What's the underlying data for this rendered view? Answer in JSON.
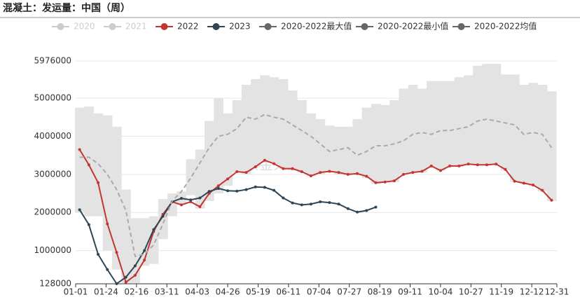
{
  "chart_data": {
    "type": "line",
    "title": "混凝土：发运量：中国（周）",
    "watermark": "紫金天风期货",
    "x": [
      3,
      10,
      17,
      24,
      31,
      38,
      45,
      52,
      59,
      66,
      73,
      80,
      87,
      94,
      101,
      108,
      115,
      122,
      129,
      136,
      143,
      150,
      157,
      164,
      171,
      178,
      185,
      192,
      199,
      206,
      213,
      220,
      227,
      234,
      241,
      248,
      255,
      262,
      269,
      276,
      283,
      290,
      297,
      304,
      311,
      318,
      325,
      332,
      339,
      346,
      353,
      360
    ],
    "xlim": [
      0,
      364
    ],
    "xticks": [
      {
        "value": 0,
        "label": "01-01"
      },
      {
        "value": 23,
        "label": "01-24"
      },
      {
        "value": 46,
        "label": "02-16"
      },
      {
        "value": 69,
        "label": "03-11"
      },
      {
        "value": 92,
        "label": "04-03"
      },
      {
        "value": 115,
        "label": "04-26"
      },
      {
        "value": 138,
        "label": "05-19"
      },
      {
        "value": 161,
        "label": "06-11"
      },
      {
        "value": 184,
        "label": "07-04"
      },
      {
        "value": 207,
        "label": "07-27"
      },
      {
        "value": 230,
        "label": "08-19"
      },
      {
        "value": 253,
        "label": "09-11"
      },
      {
        "value": 276,
        "label": "10-04"
      },
      {
        "value": 299,
        "label": "10-27"
      },
      {
        "value": 322,
        "label": "11-19"
      },
      {
        "value": 345,
        "label": "12-12"
      },
      {
        "value": 364,
        "label": "12-31"
      }
    ],
    "ylim": [
      128000,
      5976000
    ],
    "yticks": [
      128000,
      1000000,
      2000000,
      3000000,
      4000000,
      5000000,
      5976000
    ],
    "grid": true,
    "series": [
      {
        "name": "2020",
        "color": "#cccccc",
        "visible": false
      },
      {
        "name": "2021",
        "color": "#cccccc",
        "visible": false
      },
      {
        "name": "2022",
        "color": "#c23531",
        "values": [
          3650000,
          3250000,
          2780000,
          1700000,
          950000,
          170000,
          350000,
          750000,
          1500000,
          1950000,
          2280000,
          2200000,
          2280000,
          2150000,
          2500000,
          2700000,
          2880000,
          3070000,
          3050000,
          3200000,
          3370000,
          3280000,
          3150000,
          3150000,
          3070000,
          2960000,
          3050000,
          3080000,
          3050000,
          3000000,
          3020000,
          2950000,
          2780000,
          2800000,
          2830000,
          3000000,
          3050000,
          3080000,
          3220000,
          3100000,
          3220000,
          3220000,
          3270000,
          3250000,
          3250000,
          3270000,
          3130000,
          2820000,
          2770000,
          2720000,
          2580000,
          2320000
        ]
      },
      {
        "name": "2023",
        "color": "#2f4554",
        "values": [
          2070000,
          1680000,
          900000,
          500000,
          130000,
          300000,
          600000,
          1000000,
          1550000,
          1900000,
          2280000,
          2370000,
          2330000,
          2380000,
          2550000,
          2630000,
          2570000,
          2560000,
          2600000,
          2670000,
          2660000,
          2580000,
          2380000,
          2250000,
          2200000,
          2220000,
          2280000,
          2260000,
          2220000,
          2100000,
          2010000,
          2050000,
          2140000,
          null,
          null,
          null,
          null,
          null,
          null,
          null,
          null,
          null,
          null,
          null,
          null,
          null,
          null,
          null,
          null,
          null,
          null,
          null
        ]
      },
      {
        "name": "2020-2022最大值",
        "color": "#666666",
        "band": "max",
        "values": [
          4750000,
          4780000,
          4600000,
          4550000,
          4250000,
          2600000,
          1850000,
          1850000,
          1900000,
          2350000,
          2500000,
          2550000,
          3400000,
          3650000,
          4400000,
          5000000,
          4600000,
          4950000,
          5350000,
          5500000,
          5600000,
          5550000,
          5500000,
          5200000,
          4950000,
          4600000,
          4450000,
          4280000,
          4250000,
          4250000,
          4450000,
          4750000,
          4850000,
          4820000,
          4950000,
          5250000,
          5350000,
          5250000,
          5450000,
          5450000,
          5450000,
          5550000,
          5600000,
          5850000,
          5900000,
          5900000,
          5620000,
          5620000,
          5350000,
          5400000,
          5350000,
          5180000
        ]
      },
      {
        "name": "2020-2022最小值",
        "color": "#666666",
        "band": "min",
        "values": [
          2000000,
          1900000,
          1900000,
          1000000,
          500000,
          150000,
          150000,
          600000,
          650000,
          1300000,
          1900000,
          2200000,
          2450000,
          2100000,
          2300000,
          2500000,
          2700000,
          3050000,
          3000000,
          3200000,
          3350000,
          3300000,
          3150000,
          3100000,
          3050000,
          2950000,
          3000000,
          3050000,
          3000000,
          2980000,
          3000000,
          2900000,
          2750000,
          2800000,
          2800000,
          3000000,
          3050000,
          3050000,
          3200000,
          3100000,
          3200000,
          3200000,
          3250000,
          3250000,
          3250000,
          3250000,
          3100000,
          2800000,
          2750000,
          2700000,
          2550000,
          2300000
        ]
      },
      {
        "name": "2020-2022均值",
        "color": "#666666",
        "dash": true,
        "line_color": "#aaaaaa",
        "values": [
          3450000,
          3450000,
          3280000,
          3000000,
          2600000,
          2050000,
          850000,
          900000,
          1150000,
          1700000,
          2300000,
          2550000,
          2900000,
          3300000,
          3700000,
          4000000,
          4050000,
          4200000,
          4500000,
          4450000,
          4570000,
          4500000,
          4450000,
          4300000,
          4150000,
          4000000,
          3800000,
          3600000,
          3650000,
          3700000,
          3500000,
          3600000,
          3750000,
          3750000,
          3800000,
          3880000,
          4050000,
          4100000,
          4050000,
          4150000,
          4150000,
          4200000,
          4250000,
          4400000,
          4450000,
          4400000,
          4350000,
          4300000,
          4050000,
          4100000,
          4050000,
          3700000
        ]
      }
    ]
  }
}
